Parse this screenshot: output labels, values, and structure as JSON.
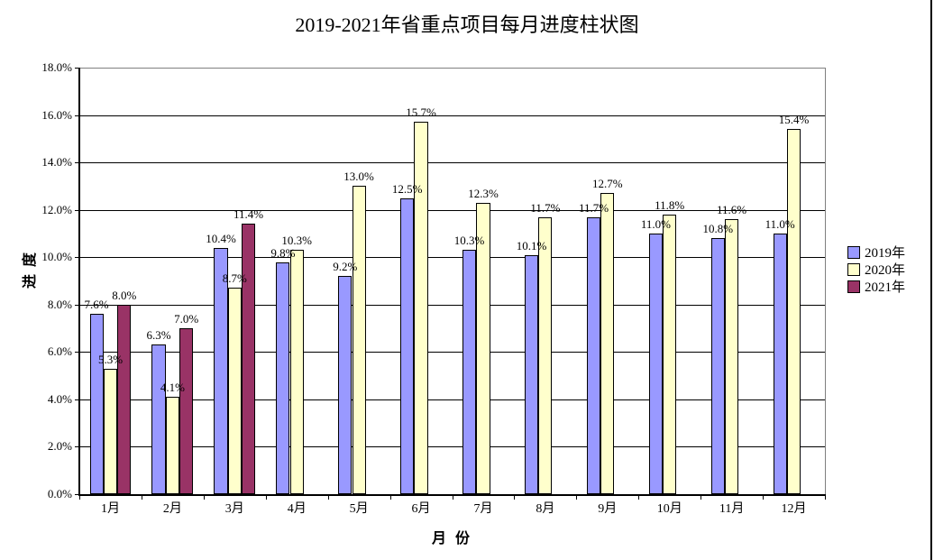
{
  "chart_data": {
    "type": "bar",
    "title": "2019-2021年省重点项目每月进度柱状图",
    "xlabel": "月 份",
    "ylabel": "进 度",
    "categories": [
      "1月",
      "2月",
      "3月",
      "4月",
      "5月",
      "6月",
      "7月",
      "8月",
      "9月",
      "10月",
      "11月",
      "12月"
    ],
    "series": [
      {
        "name": "2019年",
        "color": "#9999FF",
        "values": [
          7.6,
          6.3,
          10.4,
          9.8,
          9.2,
          12.5,
          10.3,
          10.1,
          11.7,
          11.0,
          10.8,
          11.0
        ]
      },
      {
        "name": "2020年",
        "color": "#FFFFCC",
        "values": [
          5.3,
          4.1,
          8.7,
          10.3,
          13.0,
          15.7,
          12.3,
          11.7,
          12.7,
          11.8,
          11.6,
          15.4
        ]
      },
      {
        "name": "2021年",
        "color": "#993366",
        "values": [
          8.0,
          7.0,
          11.4,
          null,
          null,
          null,
          null,
          null,
          null,
          null,
          null,
          null
        ]
      }
    ],
    "value_suffix": "%",
    "ylim": [
      0,
      18
    ],
    "y_tick_step": 2,
    "y_ticks": [
      "0.0%",
      "2.0%",
      "4.0%",
      "6.0%",
      "8.0%",
      "10.0%",
      "12.0%",
      "14.0%",
      "16.0%",
      "18.0%"
    ],
    "legend_position": "right",
    "grid": true,
    "colors": {
      "gridline": "#000000",
      "axis": "#000000",
      "plot_frame": "#808080",
      "bar_border": "#000000",
      "right_edge_line": "#000000"
    }
  }
}
